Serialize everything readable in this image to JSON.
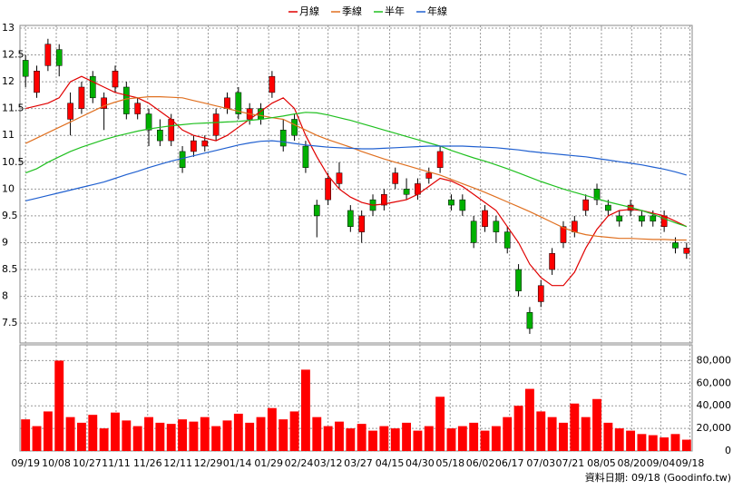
{
  "chart_data": [
    {
      "type": "candlestick",
      "legend": [
        {
          "name": "月線",
          "color": "#e00000"
        },
        {
          "name": "季線",
          "color": "#e07020"
        },
        {
          "name": "半年",
          "color": "#20c020"
        },
        {
          "name": "年線",
          "color": "#2060d0"
        }
      ],
      "up_color": "#ff0000",
      "down_color": "#00b000",
      "open": [
        12.4,
        11.8,
        12.3,
        12.6,
        11.3,
        11.5,
        12.1,
        11.5,
        11.9,
        11.9,
        11.4,
        11.4,
        11.1,
        10.9,
        10.7,
        10.7,
        10.8,
        11.0,
        11.5,
        11.8,
        11.3,
        11.5,
        11.8,
        11.1,
        11.3,
        10.8,
        9.7,
        9.8,
        10.1,
        9.6,
        9.2,
        9.8,
        9.7,
        10.1,
        10.0,
        9.9,
        10.2,
        10.4,
        9.8,
        9.8,
        9.4,
        9.3,
        9.4,
        9.2,
        8.5,
        7.7,
        7.9,
        8.5,
        9.0,
        9.2,
        9.6,
        10.0,
        9.7,
        9.5,
        9.6,
        9.5,
        9.5,
        9.3,
        9.0,
        8.8
      ],
      "high": [
        12.5,
        12.3,
        12.8,
        12.7,
        11.8,
        12.0,
        12.2,
        11.8,
        12.3,
        12.0,
        11.7,
        11.5,
        11.3,
        11.4,
        10.8,
        11.0,
        11.0,
        11.5,
        11.8,
        11.9,
        11.6,
        11.6,
        12.2,
        11.3,
        11.4,
        10.9,
        9.8,
        10.3,
        10.5,
        9.7,
        9.6,
        9.9,
        10.0,
        10.4,
        10.2,
        10.2,
        10.4,
        10.8,
        9.9,
        9.9,
        9.5,
        9.7,
        9.5,
        9.3,
        8.6,
        7.8,
        8.3,
        8.9,
        9.4,
        9.5,
        9.9,
        10.1,
        9.8,
        9.6,
        9.8,
        9.6,
        9.6,
        9.6,
        9.1,
        9.0
      ],
      "low": [
        11.9,
        11.7,
        12.2,
        12.1,
        11.0,
        11.4,
        11.6,
        11.1,
        11.8,
        11.3,
        11.3,
        10.8,
        10.8,
        10.8,
        10.3,
        10.6,
        10.7,
        10.9,
        11.4,
        11.3,
        11.2,
        11.2,
        11.7,
        10.7,
        10.9,
        10.3,
        9.1,
        9.7,
        10.0,
        9.2,
        9.0,
        9.5,
        9.6,
        10.0,
        9.8,
        9.8,
        10.1,
        10.3,
        9.6,
        9.5,
        8.9,
        9.2,
        9.0,
        8.8,
        8.0,
        7.3,
        7.8,
        8.4,
        8.9,
        9.1,
        9.5,
        9.7,
        9.5,
        9.3,
        9.5,
        9.3,
        9.3,
        9.2,
        8.8,
        8.7
      ],
      "close": [
        12.1,
        12.2,
        12.7,
        12.3,
        11.6,
        11.9,
        11.7,
        11.7,
        12.2,
        11.4,
        11.6,
        11.1,
        10.9,
        11.3,
        10.4,
        10.9,
        10.9,
        11.4,
        11.7,
        11.4,
        11.5,
        11.3,
        12.1,
        10.8,
        11.0,
        10.4,
        9.5,
        10.2,
        10.3,
        9.3,
        9.5,
        9.6,
        9.9,
        10.3,
        9.9,
        10.1,
        10.3,
        10.7,
        9.7,
        9.6,
        9.0,
        9.6,
        9.2,
        8.9,
        8.1,
        7.4,
        8.2,
        8.8,
        9.3,
        9.4,
        9.8,
        9.8,
        9.6,
        9.4,
        9.7,
        9.4,
        9.4,
        9.5,
        8.9,
        8.9
      ],
      "series": [
        {
          "name": "月線",
          "color": "#e00000",
          "values": [
            11.5,
            11.55,
            11.6,
            11.7,
            12.0,
            12.1,
            12.0,
            11.9,
            11.8,
            11.75,
            11.7,
            11.6,
            11.45,
            11.3,
            11.1,
            11.0,
            10.95,
            10.9,
            11.0,
            11.15,
            11.3,
            11.45,
            11.6,
            11.7,
            11.5,
            11.0,
            10.6,
            10.25,
            10.0,
            9.85,
            9.75,
            9.7,
            9.72,
            9.76,
            9.8,
            9.9,
            10.05,
            10.2,
            10.15,
            10.05,
            9.9,
            9.75,
            9.6,
            9.3,
            9.0,
            8.6,
            8.35,
            8.2,
            8.2,
            8.45,
            8.9,
            9.25,
            9.5,
            9.6,
            9.62,
            9.6,
            9.55,
            9.5,
            9.4,
            9.3
          ]
        },
        {
          "name": "季線",
          "color": "#e07020",
          "values": [
            10.85,
            10.95,
            11.05,
            11.15,
            11.25,
            11.35,
            11.45,
            11.55,
            11.62,
            11.68,
            11.7,
            11.72,
            11.72,
            11.71,
            11.7,
            11.65,
            11.6,
            11.55,
            11.5,
            11.45,
            11.4,
            11.37,
            11.33,
            11.3,
            11.2,
            11.1,
            11.0,
            10.92,
            10.85,
            10.78,
            10.7,
            10.63,
            10.56,
            10.5,
            10.44,
            10.38,
            10.32,
            10.26,
            10.18,
            10.1,
            10.02,
            9.94,
            9.85,
            9.76,
            9.67,
            9.58,
            9.48,
            9.38,
            9.28,
            9.2,
            9.15,
            9.12,
            9.1,
            9.08,
            9.08,
            9.07,
            9.06,
            9.06,
            9.05,
            9.05
          ]
        },
        {
          "name": "半年",
          "color": "#20c020",
          "values": [
            10.3,
            10.38,
            10.5,
            10.6,
            10.7,
            10.78,
            10.85,
            10.92,
            10.98,
            11.03,
            11.08,
            11.12,
            11.15,
            11.18,
            11.2,
            11.22,
            11.23,
            11.24,
            11.25,
            11.26,
            11.28,
            11.3,
            11.33,
            11.36,
            11.4,
            11.43,
            11.42,
            11.38,
            11.33,
            11.28,
            11.22,
            11.16,
            11.1,
            11.04,
            10.98,
            10.92,
            10.86,
            10.8,
            10.72,
            10.65,
            10.58,
            10.52,
            10.45,
            10.38,
            10.3,
            10.22,
            10.14,
            10.07,
            10.0,
            9.94,
            9.88,
            9.82,
            9.76,
            9.71,
            9.66,
            9.6,
            9.53,
            9.45,
            9.37,
            9.3
          ]
        },
        {
          "name": "年線",
          "color": "#2060d0",
          "values": [
            9.78,
            9.83,
            9.88,
            9.93,
            9.98,
            10.03,
            10.08,
            10.13,
            10.2,
            10.27,
            10.33,
            10.4,
            10.46,
            10.52,
            10.57,
            10.62,
            10.67,
            10.72,
            10.77,
            10.82,
            10.86,
            10.89,
            10.9,
            10.88,
            10.85,
            10.82,
            10.8,
            10.78,
            10.77,
            10.76,
            10.75,
            10.75,
            10.76,
            10.77,
            10.78,
            10.79,
            10.8,
            10.8,
            10.8,
            10.8,
            10.79,
            10.78,
            10.77,
            10.75,
            10.73,
            10.7,
            10.68,
            10.66,
            10.64,
            10.62,
            10.6,
            10.57,
            10.54,
            10.51,
            10.48,
            10.45,
            10.41,
            10.37,
            10.32,
            10.26
          ]
        }
      ],
      "xlim": [
        -0.5,
        59.5
      ],
      "xticks": [
        {
          "value": 0,
          "label": "09/19"
        },
        {
          "value": 2.74,
          "label": "10/08"
        },
        {
          "value": 5.49,
          "label": "10/27"
        },
        {
          "value": 8.08,
          "label": "11/11"
        },
        {
          "value": 10.9,
          "label": "11/26"
        },
        {
          "value": 13.6,
          "label": "12/11"
        },
        {
          "value": 16.3,
          "label": "12/29"
        },
        {
          "value": 18.9,
          "label": "01/14"
        },
        {
          "value": 21.7,
          "label": "01/29"
        },
        {
          "value": 24.4,
          "label": "02/24"
        },
        {
          "value": 27.0,
          "label": "03/12"
        },
        {
          "value": 29.7,
          "label": "03/27"
        },
        {
          "value": 32.5,
          "label": "04/15"
        },
        {
          "value": 35.2,
          "label": "04/30"
        },
        {
          "value": 37.9,
          "label": "05/18"
        },
        {
          "value": 40.6,
          "label": "06/02"
        },
        {
          "value": 43.2,
          "label": "06/17"
        },
        {
          "value": 46.0,
          "label": "07/03"
        },
        {
          "value": 48.6,
          "label": "07/21"
        },
        {
          "value": 51.4,
          "label": "08/05"
        },
        {
          "value": 54.1,
          "label": "08/20"
        },
        {
          "value": 56.7,
          "label": "09/04"
        },
        {
          "value": 59.3,
          "label": "09/18"
        }
      ],
      "ylim": [
        7.13,
        13.05
      ],
      "yticks": [
        7.5,
        8,
        8.5,
        9,
        9.5,
        10,
        10.5,
        11,
        11.5,
        12,
        12.5,
        13
      ],
      "grid": true
    },
    {
      "type": "bar",
      "color": "#ff0000",
      "values": [
        28000,
        22000,
        35000,
        80000,
        30000,
        25000,
        32000,
        20000,
        34000,
        27000,
        22000,
        30000,
        25000,
        24000,
        28000,
        26000,
        30000,
        22000,
        27000,
        33000,
        25000,
        30000,
        38000,
        28000,
        35000,
        72000,
        30000,
        22000,
        26000,
        20000,
        24000,
        18000,
        22000,
        20000,
        25000,
        18000,
        22000,
        48000,
        20000,
        22000,
        25000,
        18000,
        22000,
        30000,
        40000,
        55000,
        35000,
        30000,
        25000,
        42000,
        30000,
        46000,
        25000,
        20000,
        18000,
        15000,
        14000,
        12000,
        15000,
        10000
      ],
      "ylim": [
        0,
        94000
      ],
      "yticks": [
        0,
        {
          "value": 20000,
          "label": "20,000"
        },
        {
          "value": 40000,
          "label": "40,000"
        },
        {
          "value": 60000,
          "label": "60,000"
        },
        {
          "value": 80000,
          "label": "80,000"
        }
      ],
      "grid": true,
      "annotation": "資料日期: 09/18 (Goodinfo.tw)"
    }
  ]
}
